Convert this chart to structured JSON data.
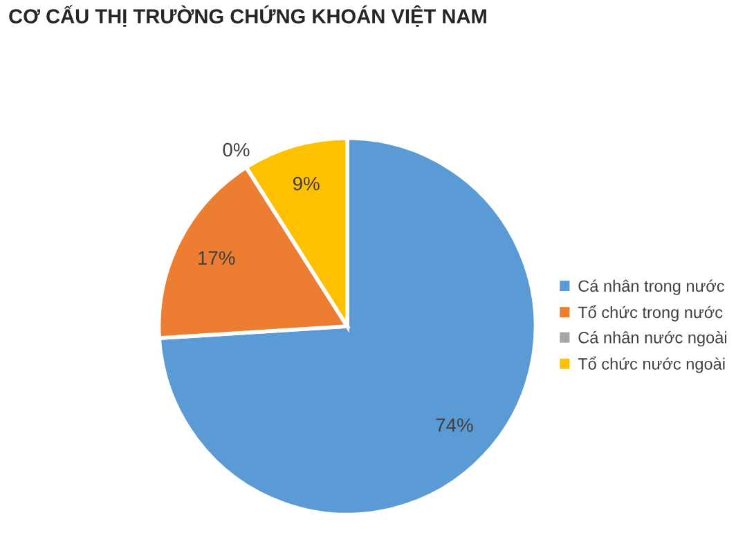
{
  "chart_data": {
    "type": "pie",
    "title": "CƠ CẤU THỊ TRƯỜNG CHỨNG KHOÁN VIỆT NAM",
    "categories": [
      "Cá nhân trong nước",
      "Tổ chức trong nước",
      "Cá nhân nước ngoài",
      "Tổ chức nước ngoài"
    ],
    "values": [
      74,
      17,
      0,
      9
    ],
    "colors": [
      "#5b9bd5",
      "#ed7d31",
      "#a5a5a5",
      "#ffc000"
    ],
    "value_labels": [
      "74%",
      "17%",
      "0%",
      "9%"
    ],
    "legend": "right"
  }
}
